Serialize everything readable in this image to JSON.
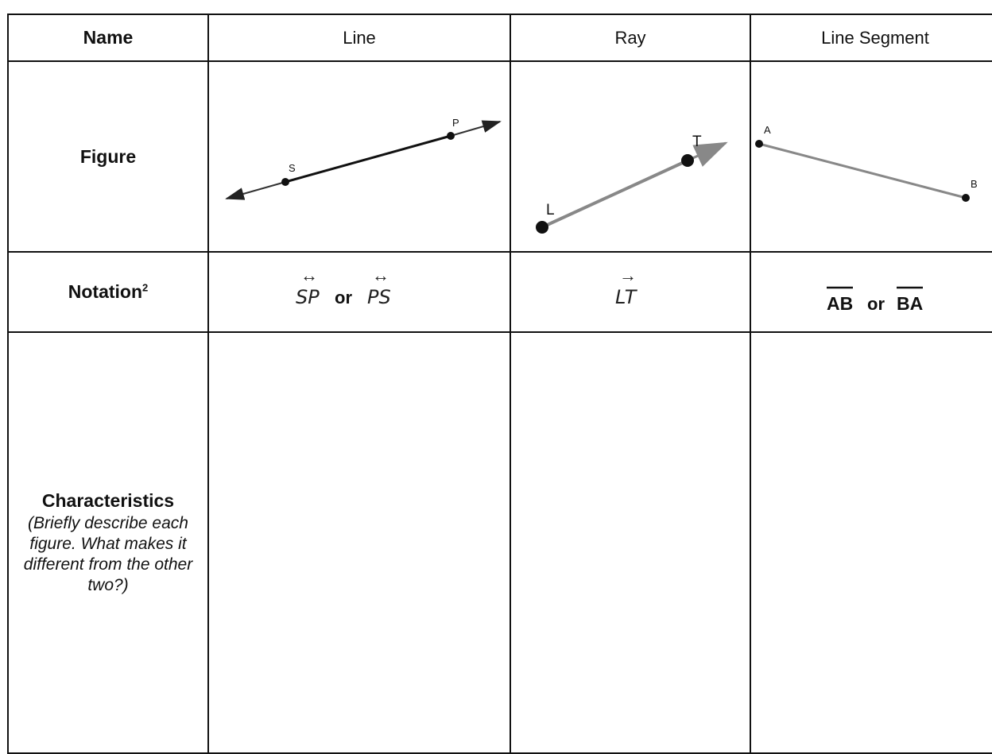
{
  "header": {
    "name_label": "Name",
    "columns": [
      "Line",
      "Ray",
      "Line Segment"
    ]
  },
  "rows": {
    "figure_label": "Figure",
    "notation_label": "Notation",
    "notation_sup": "2",
    "characteristics_label": "Characteristics",
    "characteristics_desc": "(Briefly describe each figure. What makes it different from the other two?)"
  },
  "figures": {
    "line": {
      "points": [
        "S",
        "P"
      ]
    },
    "ray": {
      "points": [
        "L",
        "T"
      ]
    },
    "segment": {
      "points": [
        "A",
        "B"
      ]
    }
  },
  "notation": {
    "line": {
      "first": "SP",
      "conj": "or",
      "second": "PS",
      "symbol": "↔"
    },
    "ray": {
      "first": "LT",
      "symbol": "→"
    },
    "segment": {
      "first": "AB",
      "conj": "or",
      "second": "BA"
    }
  },
  "colors": {
    "line_dark": "#222222",
    "gray_stroke": "#888888",
    "border": "#111111"
  }
}
